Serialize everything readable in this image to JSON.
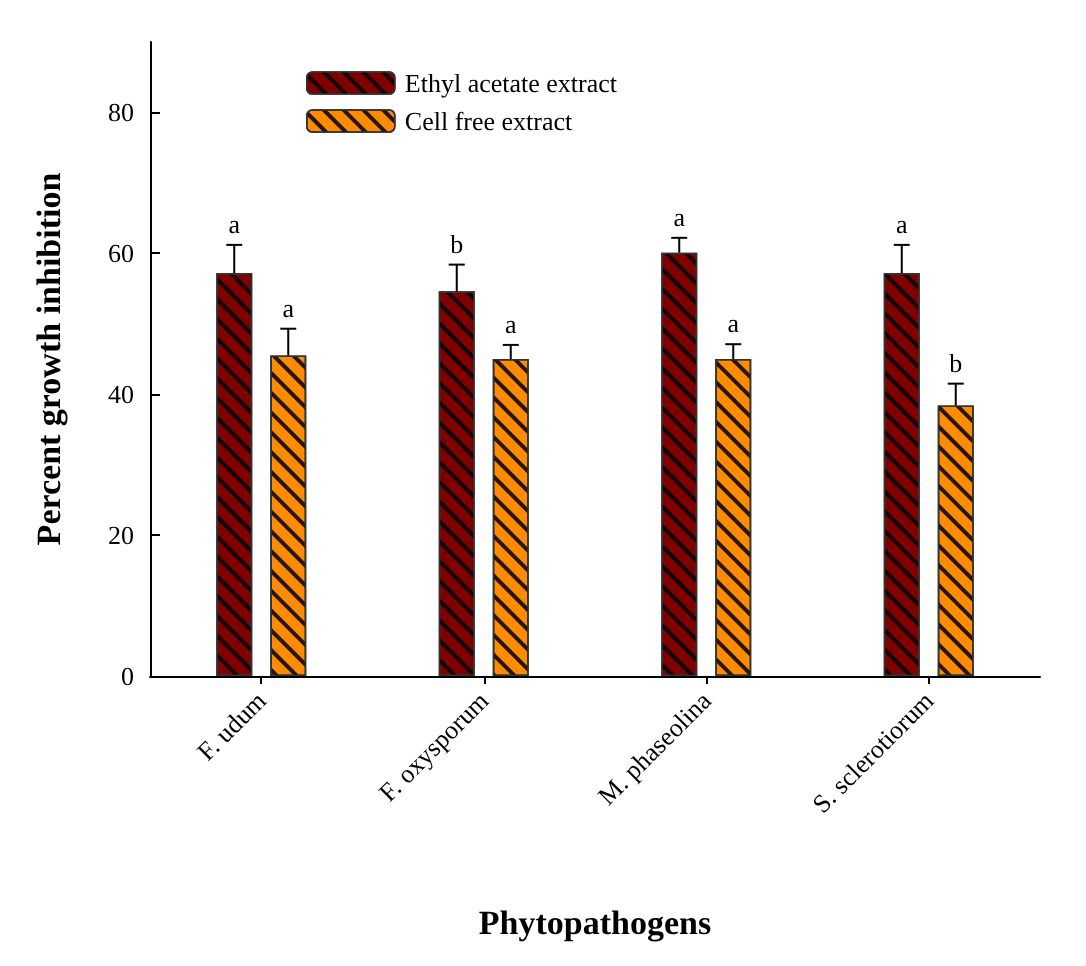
{
  "chart_data": {
    "type": "bar",
    "xlabel": "Phytopathogens",
    "ylabel": "Percent growth inhibition",
    "categories": [
      "F. udum",
      "F. oxysporum",
      "M. phaseolina",
      "S. sclerotiorum"
    ],
    "series": [
      {
        "name": "Ethyl acetate extract",
        "color": "#800000",
        "values": [
          57.2,
          54.6,
          60.1,
          57.2
        ],
        "errors": [
          4.0,
          3.8,
          2.1,
          4.0
        ],
        "value_labels": [
          "a",
          "b",
          "a",
          "a"
        ]
      },
      {
        "name": "Cell free extract",
        "color": "#ff8c00",
        "values": [
          45.5,
          45.0,
          45.0,
          38.4
        ],
        "errors": [
          3.8,
          2.0,
          2.1,
          3.1
        ],
        "value_labels": [
          "a",
          "a",
          "a",
          "b"
        ]
      }
    ],
    "ylim": [
      0,
      90
    ],
    "yticks": [
      0,
      20,
      40,
      60,
      80
    ],
    "grid": false,
    "legend": "top left"
  }
}
